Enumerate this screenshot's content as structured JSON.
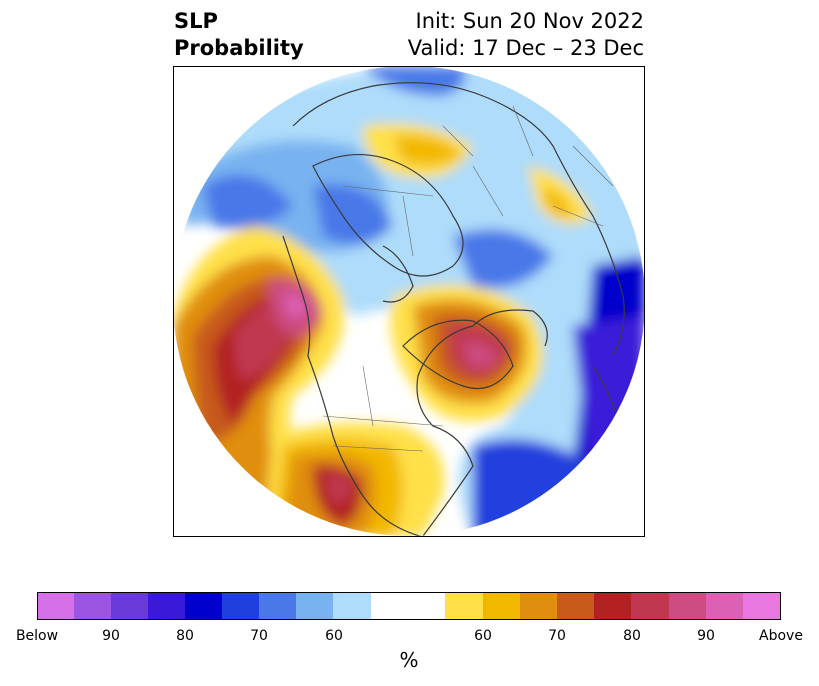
{
  "header": {
    "title_line1": "SLP",
    "title_line2": "Probability",
    "init": "Init: Sun 20 Nov 2022",
    "valid": "Valid: 17 Dec – 23 Dec"
  },
  "map": {
    "projection": "north-polar-stereographic",
    "background": "#ffffff",
    "coastline_color": "#3a3a3a",
    "border_color": "#555555"
  },
  "colorbar": {
    "colors": [
      "#d670e8",
      "#9c55e0",
      "#6a3ad8",
      "#3a1ad8",
      "#0000cc",
      "#2040dd",
      "#4a78e8",
      "#78b2f0",
      "#aedcfa",
      "#ffffff",
      "#ffe048",
      "#f2b800",
      "#e08e10",
      "#c85a1a",
      "#b22222",
      "#c03850",
      "#cc4b80",
      "#dc60b4",
      "#e878e0"
    ],
    "tick_labels": [
      "Below",
      "90",
      "80",
      "70",
      "60",
      "60",
      "70",
      "80",
      "90",
      "Above"
    ],
    "units": "%"
  }
}
